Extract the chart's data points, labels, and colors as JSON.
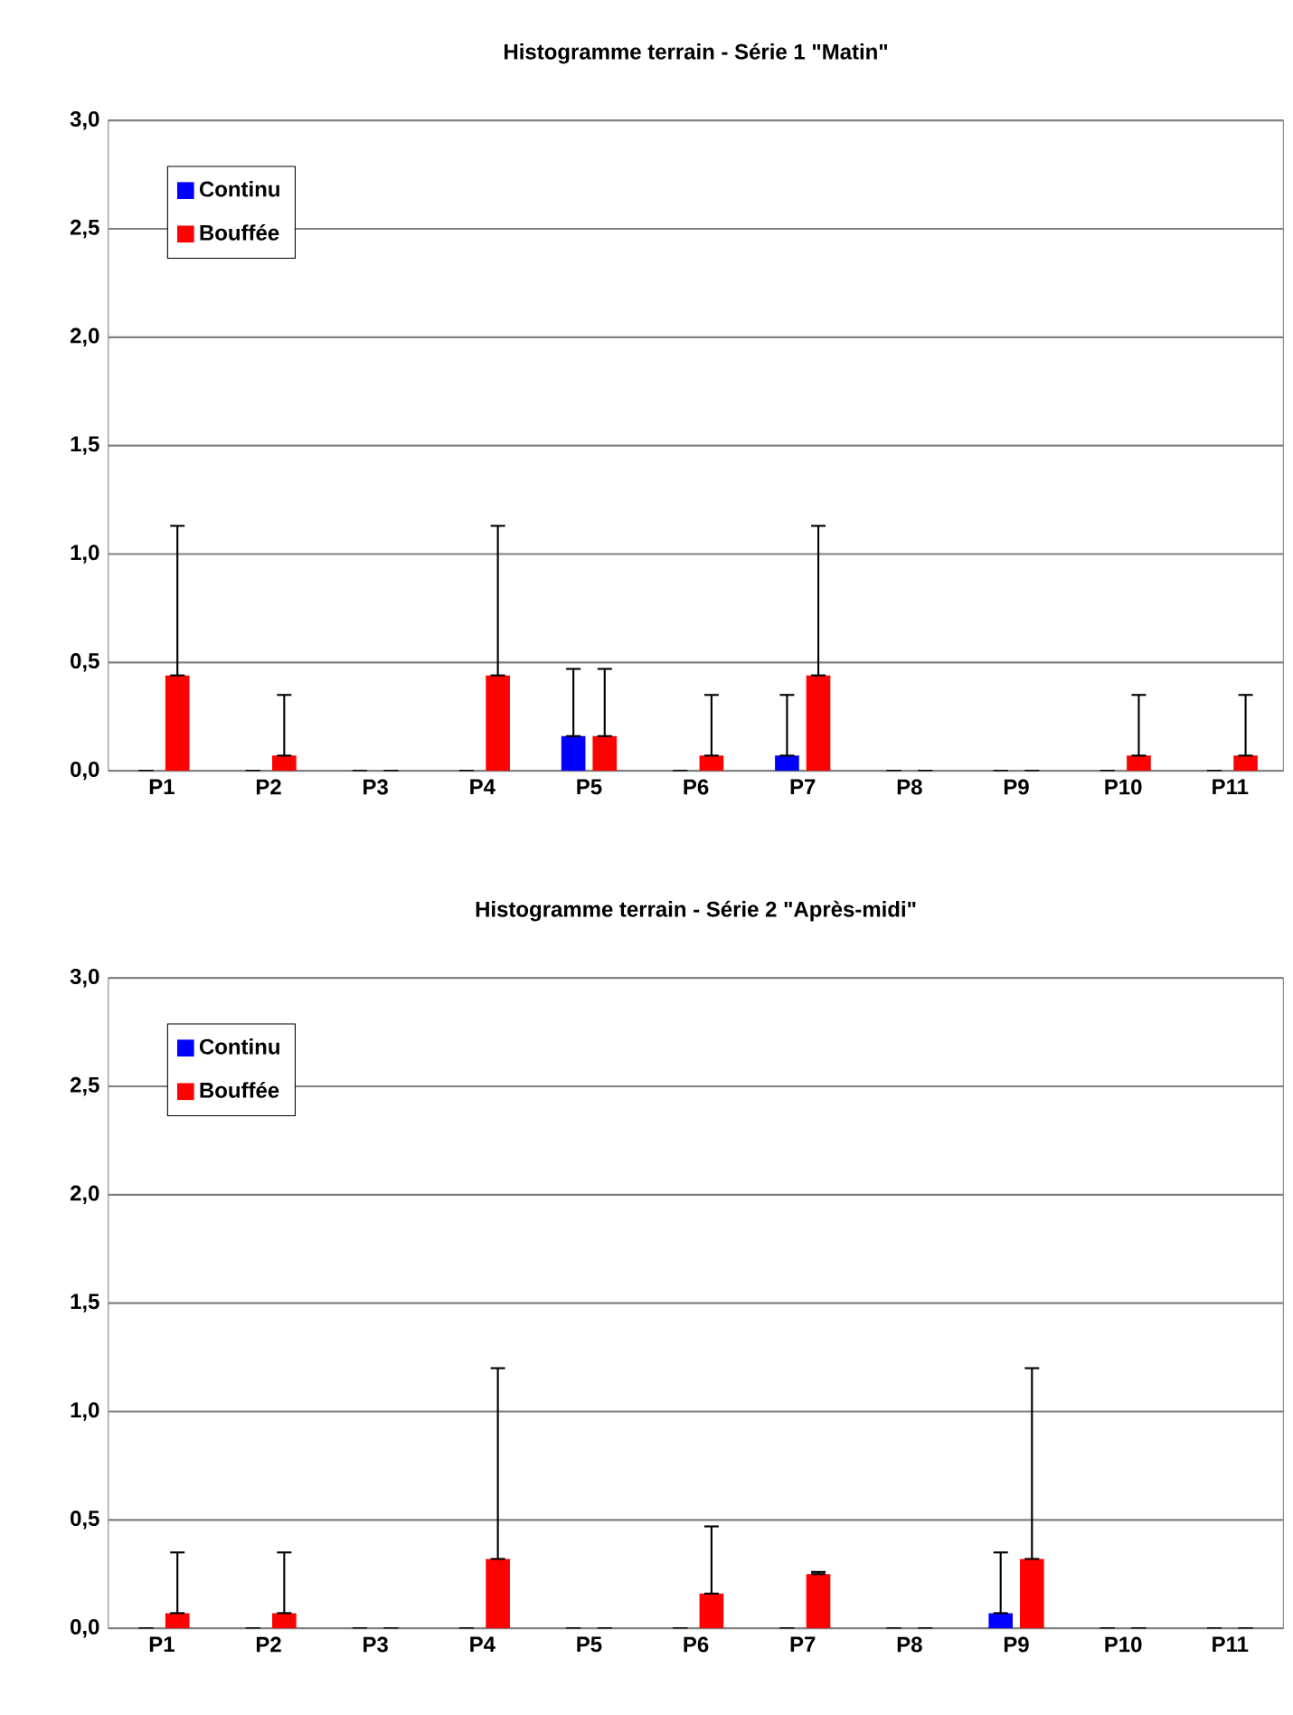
{
  "chart_data": [
    {
      "type": "bar",
      "title": "Histogramme terrain - Série 1 \"Matin\"",
      "categories": [
        "P1",
        "P2",
        "P3",
        "P4",
        "P5",
        "P6",
        "P7",
        "P8",
        "P9",
        "P10",
        "P11"
      ],
      "series": [
        {
          "name": "Continu",
          "color": "#0000ff",
          "values": [
            0,
            0,
            0,
            0,
            0.16,
            0,
            0.07,
            0,
            0,
            0,
            0
          ],
          "errors": [
            null,
            null,
            null,
            null,
            [
              0.16,
              0.47
            ],
            null,
            [
              0.07,
              0.35
            ],
            null,
            null,
            null,
            null
          ]
        },
        {
          "name": "Bouffée",
          "color": "#ff0000",
          "values": [
            0.44,
            0.07,
            0,
            0.44,
            0.16,
            0.07,
            0.44,
            0,
            0,
            0.07,
            0.07
          ],
          "errors": [
            [
              0.44,
              1.13
            ],
            [
              0.07,
              0.35
            ],
            null,
            [
              0.44,
              1.13
            ],
            [
              0.16,
              0.47
            ],
            [
              0.07,
              0.35
            ],
            [
              0.44,
              1.13
            ],
            null,
            null,
            [
              0.07,
              0.35
            ],
            [
              0.07,
              0.35
            ]
          ]
        }
      ],
      "ylim": [
        0,
        3
      ],
      "yticks": [
        {
          "value": 0,
          "label": "0,0"
        },
        {
          "value": 0.5,
          "label": "0,5"
        },
        {
          "value": 1,
          "label": "1,0"
        },
        {
          "value": 1.5,
          "label": "1,5"
        },
        {
          "value": 2,
          "label": "2,0"
        },
        {
          "value": 2.5,
          "label": "2,5"
        },
        {
          "value": 3,
          "label": "3,0"
        }
      ],
      "grid": "y",
      "legend": "top left"
    },
    {
      "type": "bar",
      "title": "Histogramme terrain - Série 2 \"Après-midi\"",
      "categories": [
        "P1",
        "P2",
        "P3",
        "P4",
        "P5",
        "P6",
        "P7",
        "P8",
        "P9",
        "P10",
        "P11"
      ],
      "series": [
        {
          "name": "Continu",
          "color": "#0000ff",
          "values": [
            0,
            0,
            0,
            0,
            0,
            0,
            0,
            0,
            0.07,
            0,
            0
          ],
          "errors": [
            null,
            null,
            null,
            null,
            null,
            null,
            null,
            null,
            [
              0.07,
              0.35
            ],
            null,
            null
          ]
        },
        {
          "name": "Bouffée",
          "color": "#ff0000",
          "values": [
            0.07,
            0.07,
            0,
            0.32,
            0,
            0.16,
            0.25,
            0,
            0.32,
            0,
            0
          ],
          "errors": [
            [
              0.07,
              0.35
            ],
            [
              0.07,
              0.35
            ],
            null,
            [
              0.32,
              1.2
            ],
            null,
            [
              0.16,
              0.47
            ],
            [
              0.25,
              0.26
            ],
            null,
            [
              0.32,
              1.2
            ],
            null,
            null
          ]
        }
      ],
      "ylim": [
        0,
        3
      ],
      "yticks": [
        {
          "value": 0,
          "label": "0,0"
        },
        {
          "value": 0.5,
          "label": "0,5"
        },
        {
          "value": 1,
          "label": "1,0"
        },
        {
          "value": 1.5,
          "label": "1,5"
        },
        {
          "value": 2,
          "label": "2,0"
        },
        {
          "value": 2.5,
          "label": "2,5"
        },
        {
          "value": 3,
          "label": "3,0"
        }
      ],
      "grid": "y",
      "legend": "top left"
    }
  ]
}
